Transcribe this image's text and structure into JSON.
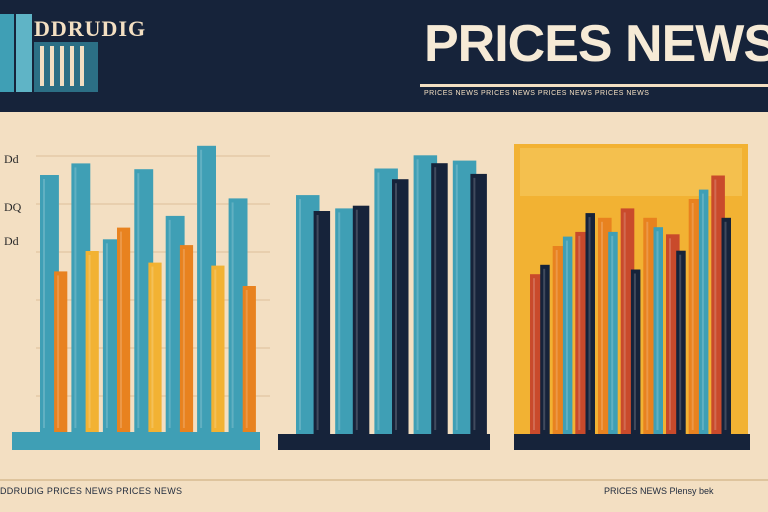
{
  "header": {
    "brand": "DDRUDIG",
    "headline": "PRICES NEWS",
    "subline": "PRICES NEWS PRICES NEWS PRICES NEWS PRICES NEWS"
  },
  "colors": {
    "navy": "#16233a",
    "teal": "#3f9fb5",
    "orange": "#e8821f",
    "yellow": "#f2b233",
    "red": "#c94a2b",
    "cream": "#f3dfc2"
  },
  "y_labels": [
    "Dd",
    "DQ",
    "Dd"
  ],
  "chart_data": [
    {
      "type": "bar",
      "series": [
        {
          "name": "",
          "values": [
            88,
            92,
            66,
            90,
            74,
            98,
            80
          ]
        },
        {
          "name": "",
          "values": [
            55,
            62,
            70,
            58,
            64,
            57,
            50
          ]
        }
      ],
      "ylim": [
        0,
        100
      ]
    },
    {
      "type": "bar",
      "series": [
        {
          "name": "",
          "values": [
            90,
            85,
            100,
            105,
            103
          ]
        },
        {
          "name": "",
          "values": [
            84,
            86,
            96,
            102,
            98
          ]
        }
      ],
      "ylim": [
        0,
        110
      ]
    },
    {
      "type": "bar",
      "series": [
        {
          "name": "",
          "values": [
            68,
            80,
            86,
            92,
            96,
            92,
            85,
            100,
            110
          ]
        },
        {
          "name": "",
          "values": [
            72,
            84,
            94,
            86,
            70,
            88,
            78,
            104,
            92
          ]
        }
      ],
      "ylim": [
        0,
        120
      ]
    }
  ],
  "footer": {
    "left": "DDRUDIG PRICES NEWS PRICES NEWS",
    "right": "PRICES NEWS Plensy bek"
  }
}
